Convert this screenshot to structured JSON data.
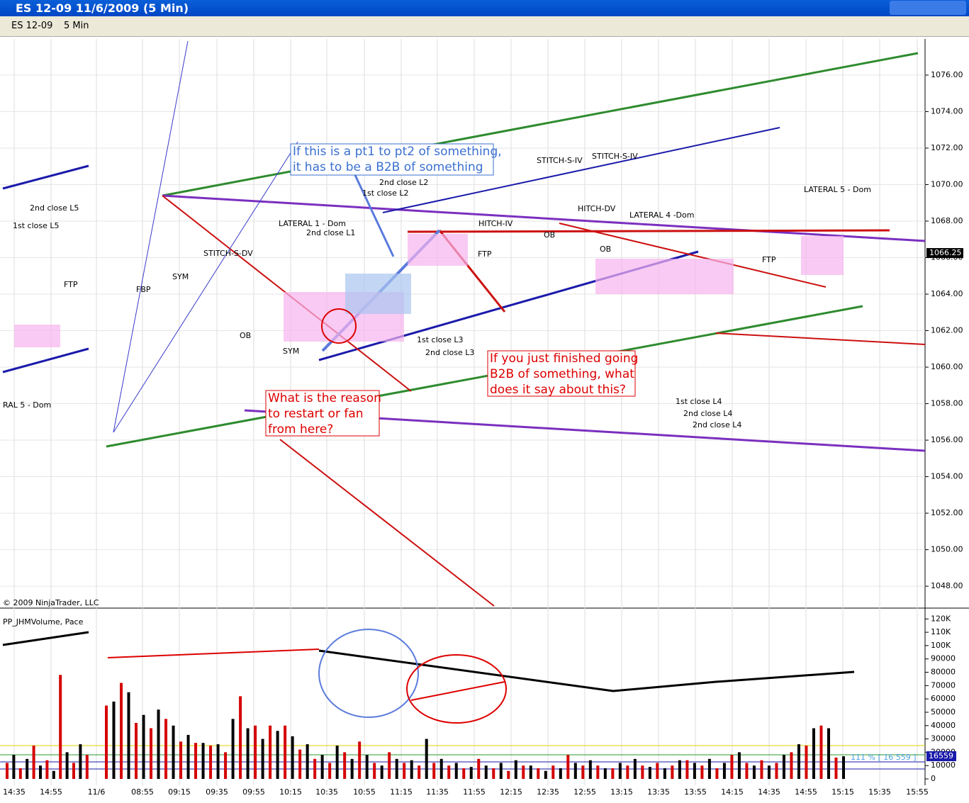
{
  "window": {
    "title": "ES 12-09  11/6/2009 (5 Min)"
  },
  "toolbar": {
    "instrument": "ES 12-09",
    "interval": "5 Min"
  },
  "chart_data": {
    "type": "annotated-price",
    "ylim": [
      1046.8,
      1077.9
    ],
    "yticks": [
      {
        "value": 1048,
        "label": "1048.00"
      },
      {
        "value": 1050,
        "label": "1050.00"
      },
      {
        "value": 1052,
        "label": "1052.00"
      },
      {
        "value": 1054,
        "label": "1054.00"
      },
      {
        "value": 1056,
        "label": "1056.00"
      },
      {
        "value": 1058,
        "label": "1058.00"
      },
      {
        "value": 1060,
        "label": "1060.00"
      },
      {
        "value": 1062,
        "label": "1062.00"
      },
      {
        "value": 1064,
        "label": "1064.00"
      },
      {
        "value": 1066,
        "label": "1066.00"
      },
      {
        "value": 1068,
        "label": "1068.00"
      },
      {
        "value": 1070,
        "label": "1070.00"
      },
      {
        "value": 1072,
        "label": "1072.00"
      },
      {
        "value": 1074,
        "label": "1074.00"
      },
      {
        "value": 1076,
        "label": "1076.00"
      }
    ],
    "last_price": {
      "value": 1066.25,
      "label": "1066.25"
    },
    "copyright": "© 2009 NinjaTrader, LLC",
    "callouts": [
      [
        "If this is a pt1 to pt2 of something,",
        "it has to be a B2B of something"
      ],
      [
        "What is the reason",
        "to restart or fan",
        "from here?"
      ],
      [
        "If you just finished going",
        "B2B of something, what",
        "does it say about this?"
      ]
    ],
    "annotations": [
      "2nd close L5",
      "1st close L5",
      "FTP",
      "RAL 5 - Dom",
      "FBP",
      "SYM",
      "STITCH-S-DV",
      "OB",
      "SYM",
      "LATERAL 1 - Dom",
      "2nd close L1",
      "2nd close L2",
      "1st close L2",
      "HITCH-IV",
      "FTP",
      "1st close L3",
      "2nd close L3",
      "STITCH-S-IV",
      "STITCH-S-IV",
      "HITCH-DV",
      "OB",
      "OB",
      "LATERAL 4 -Dom",
      "FTP",
      "LATERAL 5 - Dom",
      "1st close L4",
      "2nd close L4",
      "2nd close L4"
    ],
    "x": [
      "14:35",
      "14:55",
      "11/6",
      "08:55",
      "09:15",
      "09:35",
      "09:55",
      "10:15",
      "10:35",
      "10:55",
      "11:15",
      "11:35",
      "11:55",
      "12:15",
      "12:35",
      "12:55",
      "13:15",
      "13:35",
      "13:55",
      "14:15",
      "14:35",
      "14:55",
      "15:15",
      "15:35",
      "15:55"
    ]
  },
  "volume_panel": {
    "type": "bar",
    "label": "PP_JHMVolume, Pace",
    "ylim": [
      0,
      126000
    ],
    "yticks": [
      0,
      10000,
      20000,
      30000,
      40000,
      50000,
      60000,
      70000,
      80000,
      90000,
      {
        "value": 100000,
        "label": "100K"
      },
      {
        "value": 110000,
        "label": "110K"
      },
      {
        "value": 120000,
        "label": "120K"
      }
    ],
    "colors": [
      "#d40000",
      "#000000"
    ],
    "prev_values": [
      12000,
      18000,
      8000,
      15000,
      25000,
      10000,
      14000,
      6000,
      78000,
      20000,
      12000,
      26000,
      18000
    ],
    "values": [
      55000,
      58000,
      72000,
      65000,
      42000,
      48000,
      38000,
      52000,
      45000,
      40000,
      28000,
      33000,
      27000,
      27000,
      25000,
      26000,
      20000,
      45000,
      62000,
      38000,
      40000,
      30000,
      40000,
      36000,
      40000,
      32000,
      22000,
      26000,
      15000,
      18000,
      12000,
      25000,
      20000,
      15000,
      28000,
      18000,
      12000,
      10000,
      20000,
      15000,
      12000,
      14000,
      10000,
      30000,
      12000,
      15000,
      10000,
      12000,
      8000,
      9000,
      15000,
      10000,
      8000,
      12000,
      6000,
      14000,
      10000,
      10000,
      8000,
      6000,
      10000,
      8000,
      18000,
      12000,
      10000,
      14000,
      10000,
      8000,
      8000,
      12000,
      10000,
      15000,
      10000,
      9000,
      12000,
      8000,
      10000,
      14000,
      14000,
      12000,
      10000,
      15000,
      8000,
      12000,
      18000,
      20000,
      12000,
      10000,
      14000,
      10000,
      12000,
      18000,
      20000,
      26000,
      25000,
      38000,
      40000,
      38000,
      16000,
      17000
    ],
    "last": "16559",
    "pace": "111 % [ 16 559 ]"
  }
}
